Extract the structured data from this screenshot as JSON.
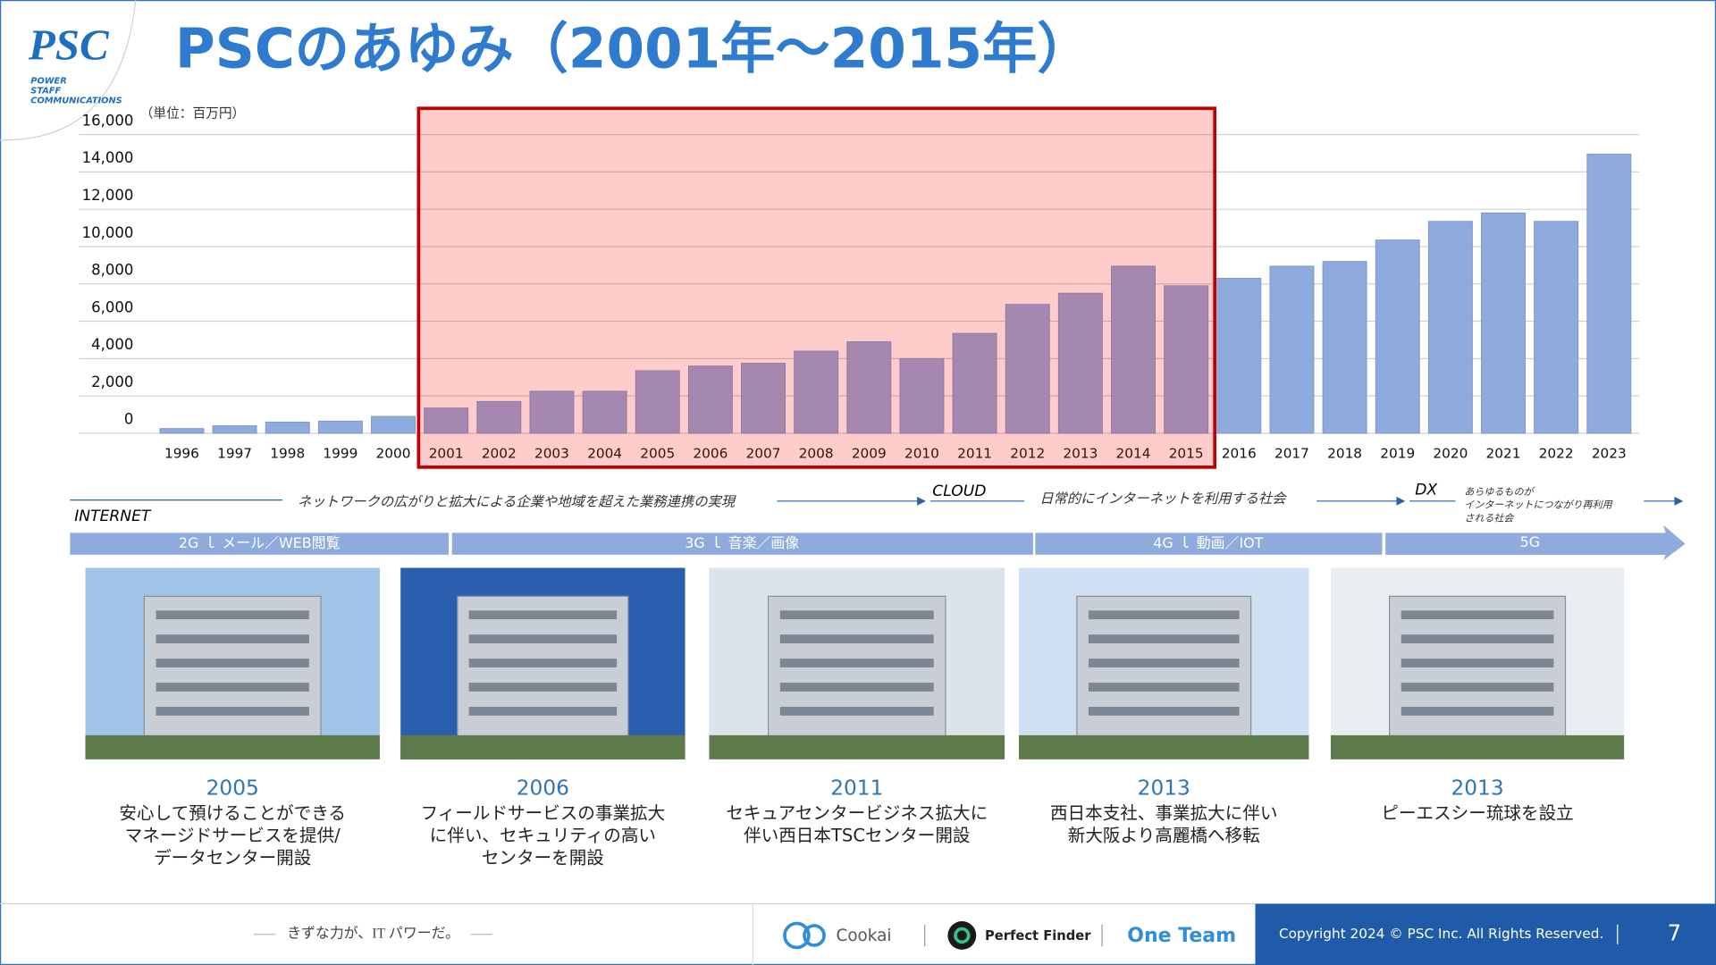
{
  "logo": {
    "name": "PSC",
    "tagline": [
      "POWER",
      "STAFF",
      "COMMUNICATIONS"
    ]
  },
  "chart_data": {
    "type": "bar",
    "title": "PSCのあゆみ（2001年～2015年）",
    "unit_label": "（単位：百万円）",
    "categories": [
      "1996",
      "1997",
      "1998",
      "1999",
      "2000",
      "2001",
      "2002",
      "2003",
      "2004",
      "2005",
      "2006",
      "2007",
      "2008",
      "2009",
      "2010",
      "2011",
      "2012",
      "2013",
      "2014",
      "2015",
      "2016",
      "2017",
      "2018",
      "2019",
      "2020",
      "2021",
      "2022",
      "2023"
    ],
    "values": [
      250,
      400,
      600,
      650,
      900,
      1350,
      1700,
      2250,
      2250,
      3350,
      3600,
      3750,
      4400,
      4900,
      4000,
      5350,
      6900,
      7500,
      8950,
      7900,
      8300,
      8950,
      9200,
      10350,
      11350,
      11800,
      11350,
      14950
    ],
    "color": "#8faadc",
    "ylim": [
      0,
      16000
    ],
    "yticks": [
      0,
      {
        "value": 2000,
        "label": "2,000"
      },
      {
        "value": 4000,
        "label": "4,000"
      },
      {
        "value": 6000,
        "label": "6,000"
      },
      {
        "value": 8000,
        "label": "8,000"
      },
      {
        "value": 10000,
        "label": "10,000"
      },
      {
        "value": 12000,
        "label": "12,000"
      },
      {
        "value": 14000,
        "label": "14,000"
      },
      {
        "value": 16000,
        "label": "16,000"
      }
    ],
    "grid": true,
    "highlight_range": [
      "2001",
      "2015"
    ],
    "highlight_color": "#c00000"
  },
  "timeline": {
    "internet": "INTERNET",
    "internet_text": "ネットワークの広がりと拡大による企業や地域を超えた業務連携の実現",
    "cloud": "CLOUD",
    "cloud_text": "日常的にインターネットを利用する社会",
    "dx": "DX",
    "dx_text": [
      "あらゆるものが",
      "インターネットにつながり再利用",
      "される社会"
    ],
    "bands": [
      "2G ｌ メール／WEB閲覧",
      "3G ｌ 音楽／画像",
      "4G ｌ 動画／IOT",
      "5G"
    ]
  },
  "milestones": [
    {
      "year": "2005",
      "lines": [
        "安心して預けることができる",
        "マネージドサービスを提供/",
        "データセンター開設"
      ]
    },
    {
      "year": "2006",
      "lines": [
        "フィールドサービスの事業拡大",
        "に伴い、セキュリティの高い",
        "センターを開設"
      ]
    },
    {
      "year": "2011",
      "lines": [
        "セキュアセンタービジネス拡大に",
        "伴い西日本TSCセンター開設"
      ]
    },
    {
      "year": "2013",
      "lines": [
        "西日本支社、事業拡大に伴い",
        "新大阪より高麗橋へ移転"
      ]
    },
    {
      "year": "2013",
      "lines": [
        "ピーエスシー琉球を設立"
      ]
    }
  ],
  "footer": {
    "slogan": "きずな力が、IT パワーだ。",
    "brands": [
      "Cookai",
      "Perfect Finder",
      "One Team"
    ],
    "copyright": "Copyright 2024 © PSC Inc. All Rights Reserved.",
    "page": "7"
  }
}
